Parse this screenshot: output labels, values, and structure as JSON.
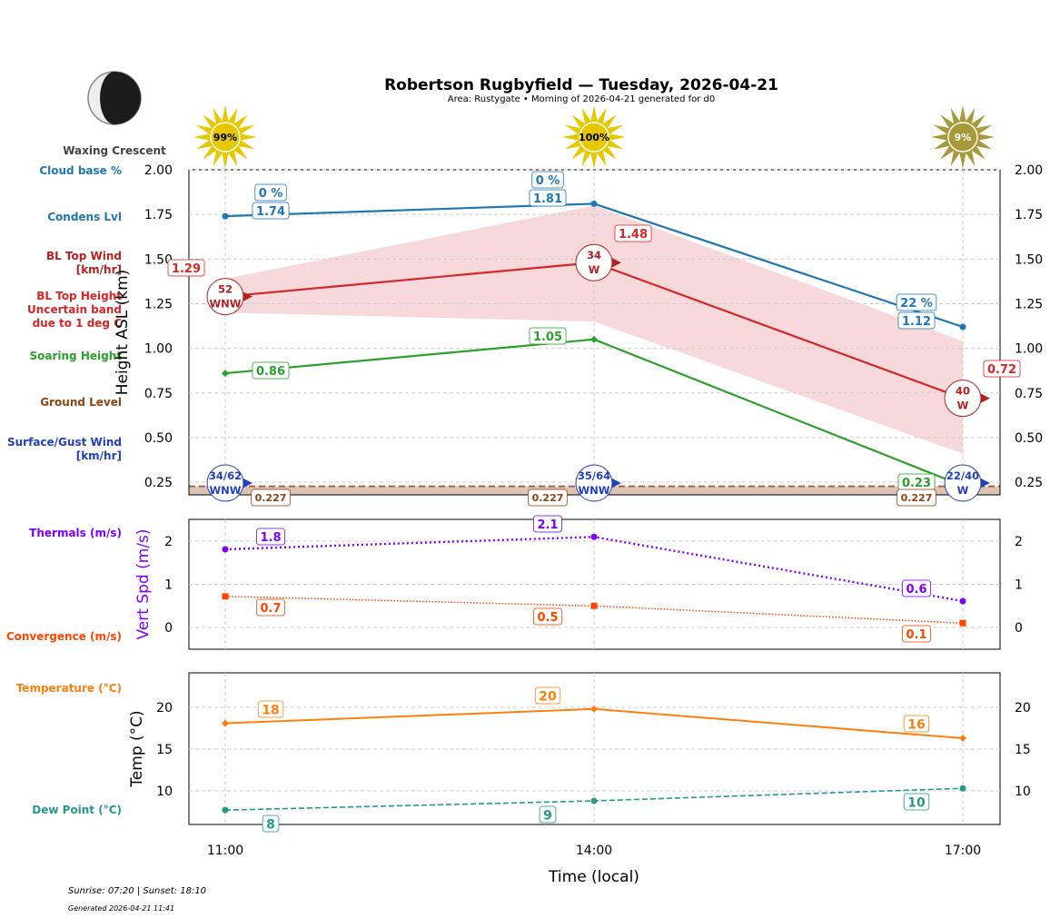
{
  "title": "Robertson Rugbyfield — Tuesday, 2026-04-21",
  "subtitle": "Area: Rustygate • Morning of 2026-04-21 generated for d0",
  "moon": {
    "phase": "Waxing Crescent",
    "icon": "moon-waxing-crescent-icon"
  },
  "sun_icons": [
    {
      "time": "11:00",
      "label": "99%",
      "color": "#e6c800"
    },
    {
      "time": "14:00",
      "label": "100%",
      "color": "#e6c800"
    },
    {
      "time": "17:00",
      "label": "9%",
      "color": "#a89a3a"
    }
  ],
  "left_labels": {
    "cloud_base": "Cloud base %",
    "condens": "Condens Lvl",
    "bl_wind": [
      "BL Top Wind",
      "[km/hr]"
    ],
    "bl_height": [
      "BL Top Height",
      "Uncertain band",
      "due to 1 deg C"
    ],
    "soaring": "Soaring Height",
    "ground": "Ground Level",
    "surface_wind": [
      "Surface/Gust Wind",
      "[km/hr]"
    ],
    "thermals": "Thermals (m/s)",
    "convergence": "Convergence (m/s)",
    "temperature": "Temperature (°C)",
    "dew": "Dew Point (°C)"
  },
  "colors": {
    "condens": "#1f77b4",
    "bl_top": "#d62728",
    "bl_wind": "#b22222",
    "band": "#f7d9dc",
    "soaring": "#2ca02c",
    "ground": "#8b4513",
    "ground_fill": "#dcc3b3",
    "surface_wind": "#2340b8",
    "thermals": "#7f00ff",
    "convergence": "#ff4500",
    "temperature": "#ff7f0e",
    "dew": "#26998a"
  },
  "footer": {
    "sun": "Sunrise: 07:20 | Sunset: 18:10",
    "generated": "Generated 2026-04-21 11:41"
  },
  "chart_data": [
    {
      "type": "line",
      "x": [
        "11:00",
        "14:00",
        "17:00"
      ],
      "ylabel": "Height ASL (km)",
      "ylim": [
        0.18,
        2.0
      ],
      "yticks": [
        "0.25",
        "0.50",
        "0.75",
        "1.00",
        "1.25",
        "1.50",
        "1.75",
        "2.00"
      ],
      "grid": true,
      "series": [
        {
          "name": "Condens Lvl",
          "values": [
            1.74,
            1.81,
            1.12
          ],
          "labels": [
            "1.74",
            "1.81",
            "1.12"
          ],
          "cloud_base": [
            "0 %",
            "0 %",
            "22 %"
          ]
        },
        {
          "name": "BL Top Height",
          "values": [
            1.29,
            1.48,
            0.72
          ],
          "labels": [
            "1.29",
            "1.48",
            "0.72"
          ],
          "band_upper": [
            1.39,
            1.8,
            1.04
          ],
          "band_lower": [
            1.2,
            1.15,
            0.41
          ]
        },
        {
          "name": "BL Top Wind",
          "speeds": [
            "52",
            "34",
            "40"
          ],
          "directions": [
            "WNW",
            "W",
            "W"
          ]
        },
        {
          "name": "Soaring Height",
          "values": [
            0.86,
            1.05,
            0.23
          ],
          "labels": [
            "0.86",
            "1.05",
            "0.23"
          ]
        },
        {
          "name": "Ground Level",
          "values": [
            0.227,
            0.227,
            0.227
          ],
          "labels": [
            "0.227",
            "0.227",
            "0.227"
          ]
        },
        {
          "name": "Surface/Gust Wind",
          "speeds": [
            "34/62",
            "35/64",
            "22/40"
          ],
          "directions": [
            "WNW",
            "WNW",
            "W"
          ]
        }
      ]
    },
    {
      "type": "line",
      "x": [
        "11:00",
        "14:00",
        "17:00"
      ],
      "ylabel": "Vert Spd (m/s)",
      "ylim": [
        -0.5,
        2.5
      ],
      "yticks": [
        "0",
        "1",
        "2"
      ],
      "grid": true,
      "series": [
        {
          "name": "Thermals (m/s)",
          "values": [
            1.81,
            2.1,
            0.61
          ],
          "labels": [
            "1.8",
            "2.1",
            "0.6"
          ]
        },
        {
          "name": "Convergence (m/s)",
          "values": [
            0.72,
            0.5,
            0.1
          ],
          "labels": [
            "0.7",
            "0.5",
            "0.1"
          ]
        }
      ]
    },
    {
      "type": "line",
      "x": [
        "11:00",
        "14:00",
        "17:00"
      ],
      "xlabel": "Time (local)",
      "ylabel": "Temp (°C)",
      "ylim": [
        6,
        24
      ],
      "yticks": [
        "10",
        "15",
        "20"
      ],
      "grid": true,
      "series": [
        {
          "name": "Temperature (°C)",
          "values": [
            18.1,
            19.8,
            16.3
          ],
          "labels": [
            "18",
            "20",
            "16"
          ]
        },
        {
          "name": "Dew Point (°C)",
          "values": [
            7.7,
            8.8,
            10.3
          ],
          "labels": [
            "8",
            "9",
            "10"
          ]
        }
      ]
    }
  ]
}
